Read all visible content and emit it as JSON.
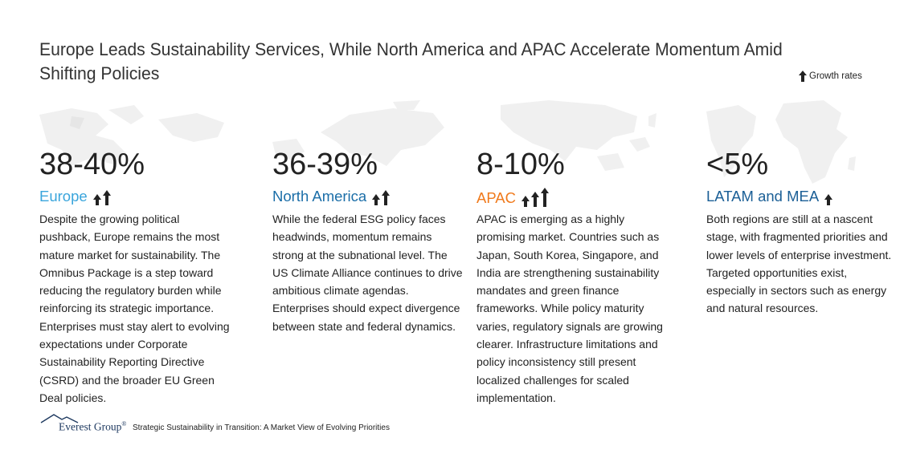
{
  "title": "Europe Leads Sustainability Services, While North America and APAC Accelerate Momentum Amid Shifting Policies",
  "legend": {
    "icon": "up-arrow-icon",
    "label": "Growth rates"
  },
  "colors": {
    "europe": "#3aa5dc",
    "north_america": "#1b6ea8",
    "apac": "#f07a1c",
    "latam_mea": "#1b5f96",
    "map": "#f0f0f0"
  },
  "regions": [
    {
      "percent": "38-40%",
      "name": "Europe",
      "growth_arrows": 2,
      "text": "Despite the growing political pushback, Europe remains the most mature market for sustainability. The Omnibus Package is a step toward reducing the regulatory burden while reinforcing its strategic importance. Enterprises must stay alert to evolving expectations under Corporate Sustainability Reporting Directive (CSRD) and the broader EU Green Deal policies."
    },
    {
      "percent": "36-39%",
      "name": "North America",
      "growth_arrows": 2,
      "text": "While the federal ESG policy faces headwinds, momentum remains strong at the subnational level. The US Climate Alliance continues to drive ambitious climate agendas. Enterprises should expect divergence between state and federal dynamics."
    },
    {
      "percent": "8-10%",
      "name": "APAC",
      "growth_arrows": 3,
      "text": "APAC is emerging as a highly promising market. Countries such as Japan, South Korea, Singapore, and India are strengthening sustainability mandates and green finance frameworks. While policy maturity varies, regulatory signals are growing clearer. Infrastructure limitations and policy inconsistency still present localized challenges for scaled implementation."
    },
    {
      "percent": "<5%",
      "name": "LATAM and MEA",
      "growth_arrows": 1,
      "text": "Both regions are still at a nascent stage, with fragmented priorities and lower levels of enterprise investment. Targeted opportunities exist, especially in sectors such as energy and natural resources."
    }
  ],
  "footer": {
    "brand": "Everest Group",
    "registered": "®",
    "source": "Strategic Sustainability in Transition: A Market View of Evolving Priorities"
  }
}
